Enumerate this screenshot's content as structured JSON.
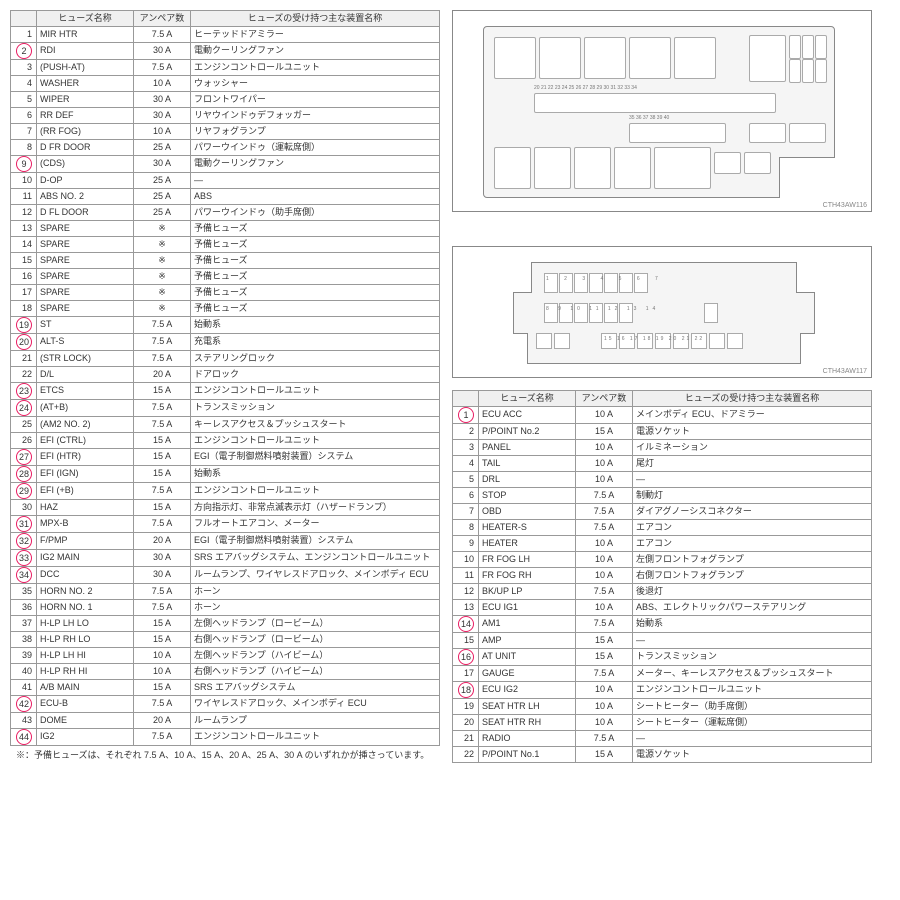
{
  "headers": {
    "idx": "",
    "name": "ヒューズ名称",
    "amp": "アンペア数",
    "desc": "ヒューズの受け持つ主な装置名称"
  },
  "table1": [
    {
      "n": "1",
      "name": "MIR HTR",
      "amp": "7.5 A",
      "desc": "ヒーテッドドアミラー",
      "c": false
    },
    {
      "n": "2",
      "name": "RDI",
      "amp": "30 A",
      "desc": "電動クーリングファン",
      "c": true
    },
    {
      "n": "3",
      "name": "(PUSH-AT)",
      "amp": "7.5 A",
      "desc": "エンジンコントロールユニット",
      "c": false
    },
    {
      "n": "4",
      "name": "WASHER",
      "amp": "10 A",
      "desc": "ウォッシャー",
      "c": false
    },
    {
      "n": "5",
      "name": "WIPER",
      "amp": "30 A",
      "desc": "フロントワイパー",
      "c": false
    },
    {
      "n": "6",
      "name": "RR DEF",
      "amp": "30 A",
      "desc": "リヤウインドゥデフォッガー",
      "c": false
    },
    {
      "n": "7",
      "name": "(RR FOG)",
      "amp": "10 A",
      "desc": "リヤフォグランプ",
      "c": false
    },
    {
      "n": "8",
      "name": "D FR DOOR",
      "amp": "25 A",
      "desc": "パワーウインドゥ（運転席側）",
      "c": false
    },
    {
      "n": "9",
      "name": "(CDS)",
      "amp": "30 A",
      "desc": "電動クーリングファン",
      "c": true
    },
    {
      "n": "10",
      "name": "D-OP",
      "amp": "25 A",
      "desc": "—",
      "c": false
    },
    {
      "n": "11",
      "name": "ABS NO. 2",
      "amp": "25 A",
      "desc": "ABS",
      "c": false
    },
    {
      "n": "12",
      "name": "D FL DOOR",
      "amp": "25 A",
      "desc": "パワーウインドゥ（助手席側）",
      "c": false
    },
    {
      "n": "13",
      "name": "SPARE",
      "amp": "※",
      "desc": "予備ヒューズ",
      "c": false
    },
    {
      "n": "14",
      "name": "SPARE",
      "amp": "※",
      "desc": "予備ヒューズ",
      "c": false
    },
    {
      "n": "15",
      "name": "SPARE",
      "amp": "※",
      "desc": "予備ヒューズ",
      "c": false
    },
    {
      "n": "16",
      "name": "SPARE",
      "amp": "※",
      "desc": "予備ヒューズ",
      "c": false
    },
    {
      "n": "17",
      "name": "SPARE",
      "amp": "※",
      "desc": "予備ヒューズ",
      "c": false
    },
    {
      "n": "18",
      "name": "SPARE",
      "amp": "※",
      "desc": "予備ヒューズ",
      "c": false
    },
    {
      "n": "19",
      "name": "ST",
      "amp": "7.5 A",
      "desc": "始動系",
      "c": true
    },
    {
      "n": "20",
      "name": "ALT-S",
      "amp": "7.5 A",
      "desc": "充電系",
      "c": true
    },
    {
      "n": "21",
      "name": "(STR LOCK)",
      "amp": "7.5 A",
      "desc": "ステアリングロック",
      "c": false
    },
    {
      "n": "22",
      "name": "D/L",
      "amp": "20 A",
      "desc": "ドアロック",
      "c": false
    },
    {
      "n": "23",
      "name": "ETCS",
      "amp": "15 A",
      "desc": "エンジンコントロールユニット",
      "c": true
    },
    {
      "n": "24",
      "name": "(AT+B)",
      "amp": "7.5 A",
      "desc": "トランスミッション",
      "c": true
    },
    {
      "n": "25",
      "name": "(AM2 NO. 2)",
      "amp": "7.5 A",
      "desc": "キーレスアクセス＆プッシュスタート",
      "c": false
    },
    {
      "n": "26",
      "name": "EFI (CTRL)",
      "amp": "15 A",
      "desc": "エンジンコントロールユニット",
      "c": false
    },
    {
      "n": "27",
      "name": "EFI (HTR)",
      "amp": "15 A",
      "desc": "EGI（電子制御燃料噴射装置）システム",
      "c": true
    },
    {
      "n": "28",
      "name": "EFI (IGN)",
      "amp": "15 A",
      "desc": "始動系",
      "c": true
    },
    {
      "n": "29",
      "name": "EFI (+B)",
      "amp": "7.5 A",
      "desc": "エンジンコントロールユニット",
      "c": true
    },
    {
      "n": "30",
      "name": "HAZ",
      "amp": "15 A",
      "desc": "方向指示灯、非常点滅表示灯（ハザードランプ）",
      "c": false
    },
    {
      "n": "31",
      "name": "MPX-B",
      "amp": "7.5 A",
      "desc": "フルオートエアコン、メーター",
      "c": true
    },
    {
      "n": "32",
      "name": "F/PMP",
      "amp": "20 A",
      "desc": "EGI（電子制御燃料噴射装置）システム",
      "c": true
    },
    {
      "n": "33",
      "name": "IG2 MAIN",
      "amp": "30 A",
      "desc": "SRS エアバッグシステム、エンジンコントロールユニット",
      "c": true
    },
    {
      "n": "34",
      "name": "DCC",
      "amp": "30 A",
      "desc": "ルームランプ、ワイヤレスドアロック、メインボディ ECU",
      "c": true
    },
    {
      "n": "35",
      "name": "HORN NO. 2",
      "amp": "7.5 A",
      "desc": "ホーン",
      "c": false
    },
    {
      "n": "36",
      "name": "HORN NO. 1",
      "amp": "7.5 A",
      "desc": "ホーン",
      "c": false
    },
    {
      "n": "37",
      "name": "H-LP LH LO",
      "amp": "15 A",
      "desc": "左側ヘッドランプ（ロービーム）",
      "c": false
    },
    {
      "n": "38",
      "name": "H-LP RH LO",
      "amp": "15 A",
      "desc": "右側ヘッドランプ（ロービーム）",
      "c": false
    },
    {
      "n": "39",
      "name": "H-LP LH HI",
      "amp": "10 A",
      "desc": "左側ヘッドランプ（ハイビーム）",
      "c": false
    },
    {
      "n": "40",
      "name": "H-LP RH HI",
      "amp": "10 A",
      "desc": "右側ヘッドランプ（ハイビーム）",
      "c": false
    },
    {
      "n": "41",
      "name": "A/B MAIN",
      "amp": "15 A",
      "desc": "SRS エアバッグシステム",
      "c": false
    },
    {
      "n": "42",
      "name": "ECU-B",
      "amp": "7.5 A",
      "desc": "ワイヤレスドアロック、メインボディ ECU",
      "c": true
    },
    {
      "n": "43",
      "name": "DOME",
      "amp": "20 A",
      "desc": "ルームランプ",
      "c": false
    },
    {
      "n": "44",
      "name": "IG2",
      "amp": "7.5 A",
      "desc": "エンジンコントロールユニット",
      "c": true
    }
  ],
  "table2": [
    {
      "n": "1",
      "name": "ECU ACC",
      "amp": "10 A",
      "desc": "メインボディ ECU、ドアミラー",
      "c": true
    },
    {
      "n": "2",
      "name": "P/POINT No.2",
      "amp": "15 A",
      "desc": "電源ソケット",
      "c": false
    },
    {
      "n": "3",
      "name": "PANEL",
      "amp": "10 A",
      "desc": "イルミネーション",
      "c": false
    },
    {
      "n": "4",
      "name": "TAIL",
      "amp": "10 A",
      "desc": "尾灯",
      "c": false
    },
    {
      "n": "5",
      "name": "DRL",
      "amp": "10 A",
      "desc": "—",
      "c": false
    },
    {
      "n": "6",
      "name": "STOP",
      "amp": "7.5 A",
      "desc": "制動灯",
      "c": false
    },
    {
      "n": "7",
      "name": "OBD",
      "amp": "7.5 A",
      "desc": "ダイアグノーシスコネクター",
      "c": false
    },
    {
      "n": "8",
      "name": "HEATER-S",
      "amp": "7.5 A",
      "desc": "エアコン",
      "c": false
    },
    {
      "n": "9",
      "name": "HEATER",
      "amp": "10 A",
      "desc": "エアコン",
      "c": false
    },
    {
      "n": "10",
      "name": "FR FOG LH",
      "amp": "10 A",
      "desc": "左側フロントフォグランプ",
      "c": false
    },
    {
      "n": "11",
      "name": "FR FOG RH",
      "amp": "10 A",
      "desc": "右側フロントフォグランプ",
      "c": false
    },
    {
      "n": "12",
      "name": "BK/UP LP",
      "amp": "7.5 A",
      "desc": "後退灯",
      "c": false
    },
    {
      "n": "13",
      "name": "ECU IG1",
      "amp": "10 A",
      "desc": "ABS、エレクトリックパワーステアリング",
      "c": false
    },
    {
      "n": "14",
      "name": "AM1",
      "amp": "7.5 A",
      "desc": "始動系",
      "c": true
    },
    {
      "n": "15",
      "name": "AMP",
      "amp": "15 A",
      "desc": "—",
      "c": false
    },
    {
      "n": "16",
      "name": "AT UNIT",
      "amp": "15 A",
      "desc": "トランスミッション",
      "c": true
    },
    {
      "n": "17",
      "name": "GAUGE",
      "amp": "7.5 A",
      "desc": "メーター、キーレスアクセス＆プッシュスタート",
      "c": false
    },
    {
      "n": "18",
      "name": "ECU IG2",
      "amp": "10 A",
      "desc": "エンジンコントロールユニット",
      "c": true
    },
    {
      "n": "19",
      "name": "SEAT HTR LH",
      "amp": "10 A",
      "desc": "シートヒーター（助手席側）",
      "c": false
    },
    {
      "n": "20",
      "name": "SEAT HTR RH",
      "amp": "10 A",
      "desc": "シートヒーター（運転席側）",
      "c": false
    },
    {
      "n": "21",
      "name": "RADIO",
      "amp": "7.5 A",
      "desc": "—",
      "c": false
    },
    {
      "n": "22",
      "name": "P/POINT No.1",
      "amp": "15 A",
      "desc": "電源ソケット",
      "c": false
    }
  ],
  "diagram1": {
    "label": "CTH43AW116",
    "top_numbers": "20 21 22 23 24 25  26 27 28 29 30 31 32 33 34",
    "mid_numbers": "35 36 37 38 39 40"
  },
  "diagram2": {
    "label": "CTH43AW117",
    "row1": "1 2 3 4 5 6 7",
    "row2": "8 9 10 11 12 13 14",
    "row3": "15 16 17 18 19 20 21 22"
  },
  "footnote": "※：予備ヒューズは、それぞれ 7.5 A、10 A、15 A、20 A、25 A、30 A のいずれかが挿さっています。",
  "style": {
    "circle_border": "#e91e63",
    "header_bg": "#f0f0f0",
    "border": "#999999"
  }
}
